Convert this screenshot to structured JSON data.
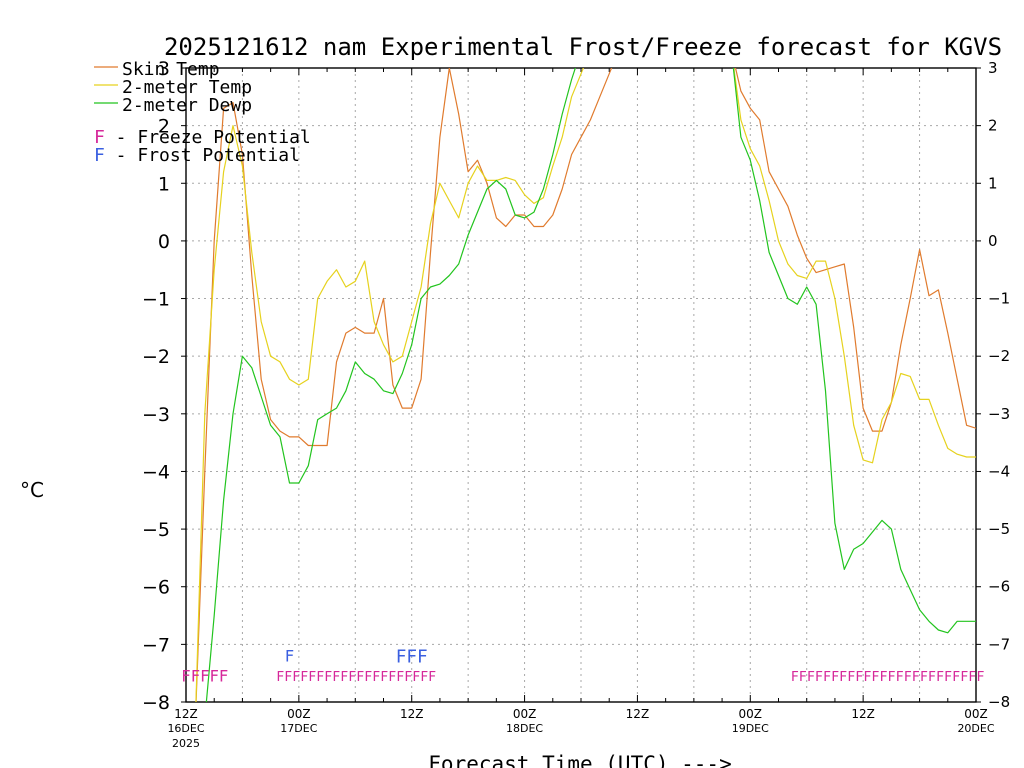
{
  "chart_data": {
    "type": "line",
    "title": "2025121612 nam Experimental Frost/Freeze forecast for KGVS",
    "ylabel": "°C",
    "xlabel": "Forecast Time (UTC) --->",
    "xlim": [
      0,
      84
    ],
    "ylim": [
      -8,
      3
    ],
    "y_ticks": [
      "−8",
      "−7",
      "−6",
      "−5",
      "−4",
      "−3",
      "−2",
      "−1",
      "0",
      "1",
      "2",
      "3"
    ],
    "y_right_ticks": [
      "−8",
      "−7",
      "−6",
      "−5",
      "−4",
      "−3",
      "−2",
      "−1",
      "0",
      "1",
      "2",
      "3"
    ],
    "x_ticks": [
      {
        "hour": 0,
        "label": "12Z",
        "sub1": "16DEC",
        "sub2": "2025"
      },
      {
        "hour": 12,
        "label": "00Z",
        "sub1": "17DEC",
        "sub2": ""
      },
      {
        "hour": 24,
        "label": "12Z",
        "sub1": "",
        "sub2": ""
      },
      {
        "hour": 36,
        "label": "00Z",
        "sub1": "18DEC",
        "sub2": ""
      },
      {
        "hour": 48,
        "label": "12Z",
        "sub1": "",
        "sub2": ""
      },
      {
        "hour": 60,
        "label": "00Z",
        "sub1": "19DEC",
        "sub2": ""
      },
      {
        "hour": 72,
        "label": "12Z",
        "sub1": "",
        "sub2": ""
      },
      {
        "hour": 84,
        "label": "00Z",
        "sub1": "20DEC",
        "sub2": ""
      }
    ],
    "legend": {
      "placement": "top-left",
      "series": [
        {
          "label": "Skin Temp",
          "color": "#e07b2e"
        },
        {
          "label": "2-meter Temp",
          "color": "#e6d21e"
        },
        {
          "label": "2-meter Dewp",
          "color": "#22c41e"
        }
      ],
      "markers": [
        {
          "glyph": "F",
          "text": " - Freeze Potential",
          "color": "#d6289a"
        },
        {
          "glyph": "F",
          "text": " - Frost Potential",
          "color": "#3a5fe0"
        }
      ]
    },
    "series": [
      {
        "name": "Skin Temp",
        "color": "#e07b2e",
        "points": [
          [
            1,
            -8.3
          ],
          [
            2,
            -4.0
          ],
          [
            3,
            0.0
          ],
          [
            4,
            2.3
          ],
          [
            5,
            2.4
          ],
          [
            6,
            1.5
          ],
          [
            7,
            -0.6
          ],
          [
            8,
            -2.4
          ],
          [
            9,
            -3.1
          ],
          [
            10,
            -3.3
          ],
          [
            11,
            -3.4
          ],
          [
            12,
            -3.4
          ],
          [
            13,
            -3.55
          ],
          [
            14,
            -3.55
          ],
          [
            15,
            -3.55
          ],
          [
            16,
            -2.1
          ],
          [
            17,
            -1.6
          ],
          [
            18,
            -1.5
          ],
          [
            19,
            -1.6
          ],
          [
            20,
            -1.6
          ],
          [
            21,
            -1.0
          ],
          [
            22,
            -2.5
          ],
          [
            23,
            -2.9
          ],
          [
            24,
            -2.9
          ],
          [
            25,
            -2.4
          ],
          [
            26,
            -0.2
          ],
          [
            27,
            1.8
          ],
          [
            28,
            3.0
          ],
          [
            29,
            2.2
          ],
          [
            30,
            1.2
          ],
          [
            31,
            1.4
          ],
          [
            32,
            1.0
          ],
          [
            33,
            0.4
          ],
          [
            34,
            0.25
          ],
          [
            35,
            0.45
          ],
          [
            36,
            0.45
          ],
          [
            37,
            0.25
          ],
          [
            38,
            0.25
          ],
          [
            39,
            0.45
          ],
          [
            40,
            0.9
          ],
          [
            41,
            1.5
          ],
          [
            42,
            1.8
          ],
          [
            43,
            2.1
          ],
          [
            44,
            2.5
          ],
          [
            45,
            2.9
          ],
          [
            46,
            3.3
          ],
          [
            58,
            3.3
          ],
          [
            59,
            2.6
          ],
          [
            60,
            2.3
          ],
          [
            61,
            2.1
          ],
          [
            62,
            1.2
          ],
          [
            63,
            0.9
          ],
          [
            64,
            0.6
          ],
          [
            65,
            0.1
          ],
          [
            66,
            -0.3
          ],
          [
            67,
            -0.55
          ],
          [
            68,
            -0.5
          ],
          [
            69,
            -0.45
          ],
          [
            70,
            -0.4
          ],
          [
            71,
            -1.5
          ],
          [
            72,
            -2.9
          ],
          [
            73,
            -3.3
          ],
          [
            74,
            -3.3
          ],
          [
            75,
            -2.8
          ],
          [
            76,
            -1.8
          ],
          [
            77,
            -1.0
          ],
          [
            78,
            -0.15
          ],
          [
            79,
            -0.95
          ],
          [
            80,
            -0.85
          ],
          [
            81,
            -1.6
          ],
          [
            82,
            -2.4
          ],
          [
            83,
            -3.2
          ],
          [
            84,
            -3.25
          ]
        ]
      },
      {
        "name": "2-meter Temp",
        "color": "#e6d21e",
        "points": [
          [
            1,
            -8.3
          ],
          [
            2,
            -3.0
          ],
          [
            3,
            -0.5
          ],
          [
            4,
            1.2
          ],
          [
            5,
            2.0
          ],
          [
            6,
            1.3
          ],
          [
            7,
            -0.2
          ],
          [
            8,
            -1.4
          ],
          [
            9,
            -2.0
          ],
          [
            10,
            -2.1
          ],
          [
            11,
            -2.4
          ],
          [
            12,
            -2.5
          ],
          [
            13,
            -2.4
          ],
          [
            14,
            -1.0
          ],
          [
            15,
            -0.7
          ],
          [
            16,
            -0.5
          ],
          [
            17,
            -0.8
          ],
          [
            18,
            -0.7
          ],
          [
            19,
            -0.35
          ],
          [
            20,
            -1.4
          ],
          [
            21,
            -1.8
          ],
          [
            22,
            -2.1
          ],
          [
            23,
            -2.0
          ],
          [
            24,
            -1.4
          ],
          [
            25,
            -0.8
          ],
          [
            26,
            0.3
          ],
          [
            27,
            1.0
          ],
          [
            28,
            0.7
          ],
          [
            29,
            0.4
          ],
          [
            30,
            1.0
          ],
          [
            31,
            1.3
          ],
          [
            32,
            1.05
          ],
          [
            33,
            1.05
          ],
          [
            34,
            1.1
          ],
          [
            35,
            1.05
          ],
          [
            36,
            0.8
          ],
          [
            37,
            0.65
          ],
          [
            38,
            0.75
          ],
          [
            39,
            1.3
          ],
          [
            40,
            1.8
          ],
          [
            41,
            2.5
          ],
          [
            42,
            2.9
          ],
          [
            43,
            3.3
          ],
          [
            58,
            3.3
          ],
          [
            59,
            2.1
          ],
          [
            60,
            1.6
          ],
          [
            61,
            1.3
          ],
          [
            62,
            0.7
          ],
          [
            63,
            0.0
          ],
          [
            64,
            -0.4
          ],
          [
            65,
            -0.6
          ],
          [
            66,
            -0.65
          ],
          [
            67,
            -0.35
          ],
          [
            68,
            -0.35
          ],
          [
            69,
            -1.0
          ],
          [
            70,
            -2.0
          ],
          [
            71,
            -3.2
          ],
          [
            72,
            -3.8
          ],
          [
            73,
            -3.85
          ],
          [
            74,
            -3.1
          ],
          [
            75,
            -2.8
          ],
          [
            76,
            -2.3
          ],
          [
            77,
            -2.35
          ],
          [
            78,
            -2.75
          ],
          [
            79,
            -2.75
          ],
          [
            80,
            -3.2
          ],
          [
            81,
            -3.6
          ],
          [
            82,
            -3.7
          ],
          [
            83,
            -3.75
          ],
          [
            84,
            -3.75
          ]
        ]
      },
      {
        "name": "2-meter Dewp",
        "color": "#22c41e",
        "points": [
          [
            2,
            -8.3
          ],
          [
            3,
            -6.5
          ],
          [
            4,
            -4.5
          ],
          [
            5,
            -3.0
          ],
          [
            6,
            -2.0
          ],
          [
            7,
            -2.2
          ],
          [
            8,
            -2.7
          ],
          [
            9,
            -3.2
          ],
          [
            10,
            -3.4
          ],
          [
            11,
            -4.2
          ],
          [
            12,
            -4.2
          ],
          [
            13,
            -3.9
          ],
          [
            14,
            -3.1
          ],
          [
            15,
            -3.0
          ],
          [
            16,
            -2.9
          ],
          [
            17,
            -2.6
          ],
          [
            18,
            -2.1
          ],
          [
            19,
            -2.3
          ],
          [
            20,
            -2.4
          ],
          [
            21,
            -2.6
          ],
          [
            22,
            -2.65
          ],
          [
            23,
            -2.3
          ],
          [
            24,
            -1.8
          ],
          [
            25,
            -1.0
          ],
          [
            26,
            -0.8
          ],
          [
            27,
            -0.75
          ],
          [
            28,
            -0.6
          ],
          [
            29,
            -0.4
          ],
          [
            30,
            0.1
          ],
          [
            31,
            0.5
          ],
          [
            32,
            0.9
          ],
          [
            33,
            1.05
          ],
          [
            34,
            0.9
          ],
          [
            35,
            0.45
          ],
          [
            36,
            0.4
          ],
          [
            37,
            0.5
          ],
          [
            38,
            0.9
          ],
          [
            39,
            1.5
          ],
          [
            40,
            2.2
          ],
          [
            41,
            2.8
          ],
          [
            42,
            3.3
          ],
          [
            58,
            3.3
          ],
          [
            59,
            1.8
          ],
          [
            60,
            1.4
          ],
          [
            61,
            0.7
          ],
          [
            62,
            -0.2
          ],
          [
            63,
            -0.6
          ],
          [
            64,
            -1.0
          ],
          [
            65,
            -1.1
          ],
          [
            66,
            -0.8
          ],
          [
            67,
            -1.1
          ],
          [
            68,
            -2.6
          ],
          [
            69,
            -4.9
          ],
          [
            70,
            -5.7
          ],
          [
            71,
            -5.35
          ],
          [
            72,
            -5.25
          ],
          [
            73,
            -5.05
          ],
          [
            74,
            -4.85
          ],
          [
            75,
            -5.0
          ],
          [
            76,
            -5.7
          ],
          [
            77,
            -6.05
          ],
          [
            78,
            -6.4
          ],
          [
            79,
            -6.6
          ],
          [
            80,
            -6.75
          ],
          [
            81,
            -6.8
          ],
          [
            82,
            -6.6
          ],
          [
            83,
            -6.6
          ],
          [
            84,
            -6.6
          ]
        ]
      }
    ],
    "freeze_potential": {
      "color": "#d6289a",
      "y_value": -7.55,
      "segments": [
        {
          "text": "FFFFF",
          "start_hour": -0.5,
          "end_hour": 4.5
        },
        {
          "text": "FFFFFFFFFFFFFFFFFFFF",
          "start_hour": 9.6,
          "end_hour": 26.6
        },
        {
          "text": "FFFFFFFFFFFFFFFFFFFFFFFF",
          "start_hour": 64.3,
          "end_hour": 84.9
        }
      ]
    },
    "frost_potential": {
      "color": "#3a5fe0",
      "y_value": -7.2,
      "segments": [
        {
          "text": "F",
          "start_hour": 10.5,
          "end_hour": 11.5
        },
        {
          "text": "FFF",
          "start_hour": 22.3,
          "end_hour": 25.7
        }
      ]
    }
  }
}
